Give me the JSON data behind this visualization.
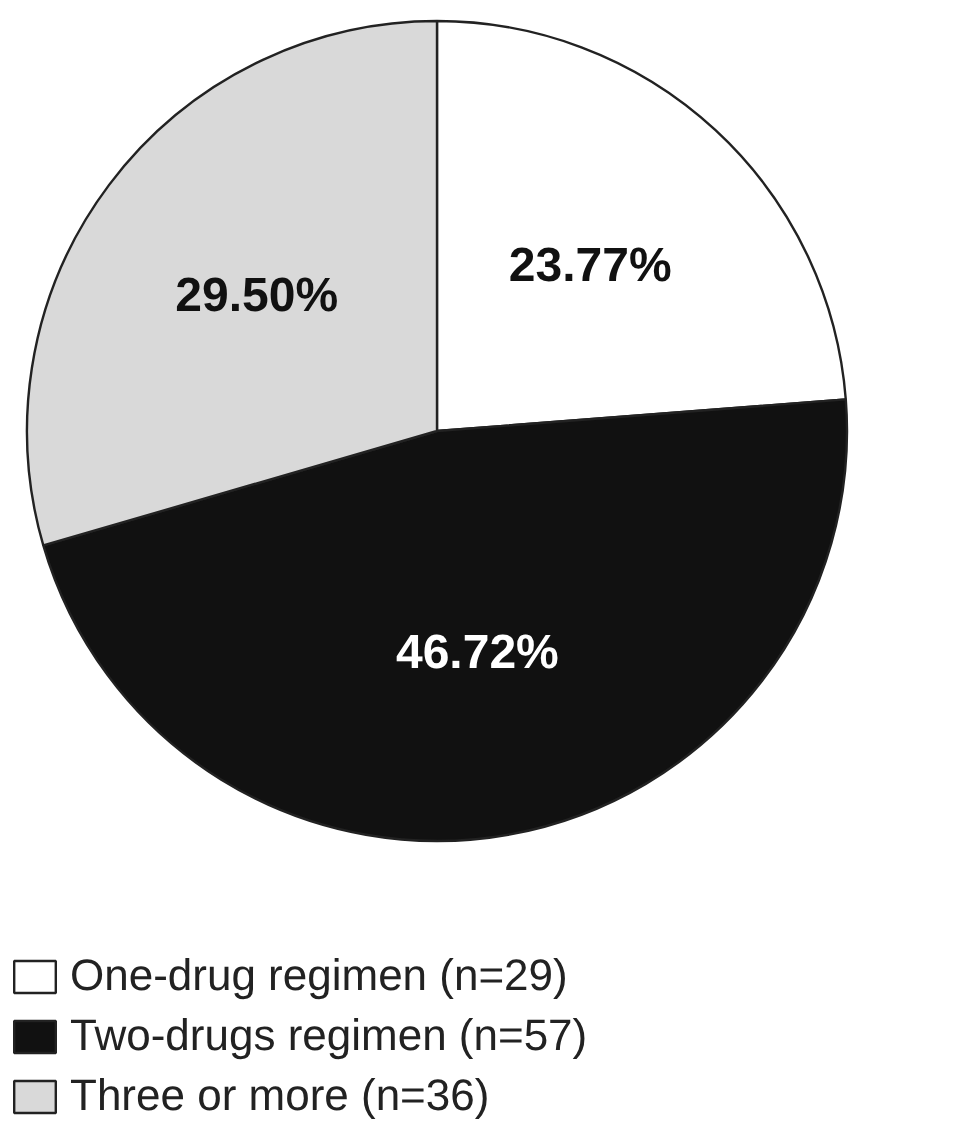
{
  "chart_data": {
    "type": "pie",
    "categories": [
      "One-drug regimen (n=29)",
      "Two-drugs regimen (n=57)",
      "Three or more (n=36)"
    ],
    "values": [
      23.77,
      46.72,
      29.5
    ],
    "value_labels": [
      "23.77%",
      "46.72%",
      "29.50%"
    ],
    "colors": [
      "#ffffff",
      "#111111",
      "#d9d9d9"
    ],
    "legend": "bottom"
  }
}
